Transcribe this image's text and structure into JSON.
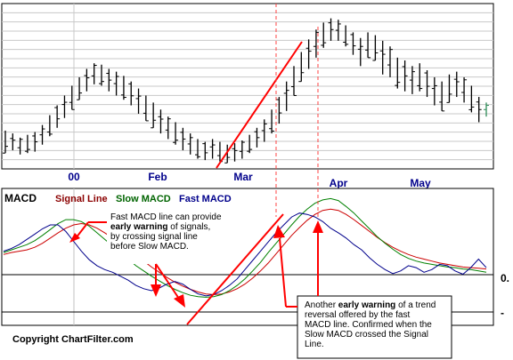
{
  "chart_data": [
    {
      "type": "bar",
      "subtype": "ohlc-price-bars",
      "x_tick_labels": [
        "00",
        "Feb",
        "Mar",
        "Apr",
        "May"
      ],
      "grid": true,
      "series": [
        {
          "color": "#000000",
          "values": [
            {
              "hi": 0.2,
              "lo": 0.04
            },
            {
              "hi": 0.18,
              "lo": 0.06
            },
            {
              "hi": 0.15,
              "lo": 0.03
            },
            {
              "hi": 0.17,
              "lo": 0.04
            },
            {
              "hi": 0.19,
              "lo": 0.05
            },
            {
              "hi": 0.24,
              "lo": 0.1
            },
            {
              "hi": 0.31,
              "lo": 0.16
            },
            {
              "hi": 0.38,
              "lo": 0.22
            },
            {
              "hi": 0.45,
              "lo": 0.29
            },
            {
              "hi": 0.52,
              "lo": 0.35
            },
            {
              "hi": 0.58,
              "lo": 0.42
            },
            {
              "hi": 0.64,
              "lo": 0.48
            },
            {
              "hi": 0.68,
              "lo": 0.53
            },
            {
              "hi": 0.67,
              "lo": 0.52
            },
            {
              "hi": 0.64,
              "lo": 0.48
            },
            {
              "hi": 0.62,
              "lo": 0.45
            },
            {
              "hi": 0.59,
              "lo": 0.42
            },
            {
              "hi": 0.55,
              "lo": 0.38
            },
            {
              "hi": 0.5,
              "lo": 0.32
            },
            {
              "hi": 0.45,
              "lo": 0.27
            },
            {
              "hi": 0.4,
              "lo": 0.22
            },
            {
              "hi": 0.35,
              "lo": 0.18
            },
            {
              "hi": 0.3,
              "lo": 0.14
            },
            {
              "hi": 0.26,
              "lo": 0.1
            },
            {
              "hi": 0.22,
              "lo": 0.06
            },
            {
              "hi": 0.18,
              "lo": 0.03
            },
            {
              "hi": 0.14,
              "lo": 0.0
            },
            {
              "hi": 0.12,
              "lo": -0.01
            },
            {
              "hi": 0.14,
              "lo": 0.0
            },
            {
              "hi": 0.12,
              "lo": -0.02
            },
            {
              "hi": 0.1,
              "lo": -0.03
            },
            {
              "hi": 0.11,
              "lo": -0.02
            },
            {
              "hi": 0.13,
              "lo": 0.0
            },
            {
              "hi": 0.17,
              "lo": 0.04
            },
            {
              "hi": 0.22,
              "lo": 0.08
            },
            {
              "hi": 0.28,
              "lo": 0.12
            },
            {
              "hi": 0.35,
              "lo": 0.18
            },
            {
              "hi": 0.44,
              "lo": 0.25
            },
            {
              "hi": 0.55,
              "lo": 0.34
            },
            {
              "hi": 0.66,
              "lo": 0.45
            },
            {
              "hi": 0.76,
              "lo": 0.55
            },
            {
              "hi": 0.85,
              "lo": 0.64
            },
            {
              "hi": 0.92,
              "lo": 0.72
            },
            {
              "hi": 0.97,
              "lo": 0.79
            },
            {
              "hi": 1.0,
              "lo": 0.84
            },
            {
              "hi": 0.99,
              "lo": 0.84
            },
            {
              "hi": 0.95,
              "lo": 0.8
            },
            {
              "hi": 0.9,
              "lo": 0.74
            },
            {
              "hi": 0.86,
              "lo": 0.66
            },
            {
              "hi": 0.9,
              "lo": 0.72
            },
            {
              "hi": 0.88,
              "lo": 0.7
            },
            {
              "hi": 0.84,
              "lo": 0.6
            },
            {
              "hi": 0.8,
              "lo": 0.58
            },
            {
              "hi": 0.72,
              "lo": 0.5
            },
            {
              "hi": 0.7,
              "lo": 0.48
            },
            {
              "hi": 0.66,
              "lo": 0.46
            },
            {
              "hi": 0.68,
              "lo": 0.48
            },
            {
              "hi": 0.63,
              "lo": 0.44
            },
            {
              "hi": 0.58,
              "lo": 0.38
            },
            {
              "hi": 0.55,
              "lo": 0.34
            },
            {
              "hi": 0.6,
              "lo": 0.4
            },
            {
              "hi": 0.62,
              "lo": 0.44
            },
            {
              "hi": 0.58,
              "lo": 0.4
            },
            {
              "hi": 0.52,
              "lo": 0.33
            },
            {
              "hi": 0.44,
              "lo": 0.26
            },
            {
              "hi": 0.4,
              "lo": 0.3
            }
          ]
        }
      ],
      "ylim": [
        -0.06,
        1.08
      ]
    },
    {
      "type": "line",
      "title": "MACD",
      "legend": [
        "Signal Line",
        "Slow MACD",
        "Fast MACD"
      ],
      "legend_position": "top-left",
      "y_tick_labels": [
        "0.",
        "-"
      ],
      "grid": true,
      "ylim": [
        -1.0,
        1.0
      ],
      "series": [
        {
          "name": "Signal Line",
          "color": "#cc0000",
          "values": [
            0.05,
            0.08,
            0.1,
            0.12,
            0.16,
            0.22,
            0.3,
            0.38,
            0.45,
            0.5,
            0.52,
            0.5,
            0.45,
            0.38,
            0.3,
            0.22,
            0.13,
            0.04,
            -0.05,
            -0.14,
            -0.22,
            -0.3,
            -0.37,
            -0.43,
            -0.48,
            -0.52,
            -0.55,
            -0.56,
            -0.55,
            -0.52,
            -0.47,
            -0.4,
            -0.31,
            -0.2,
            -0.08,
            0.06,
            0.2,
            0.34,
            0.46,
            0.57,
            0.66,
            0.72,
            0.74,
            0.72,
            0.66,
            0.58,
            0.49,
            0.4,
            0.31,
            0.23,
            0.16,
            0.1,
            0.05,
            0.01,
            -0.02,
            -0.05,
            -0.08,
            -0.1,
            -0.12,
            -0.14,
            -0.15,
            -0.16,
            -0.17
          ]
        },
        {
          "name": "Slow MACD",
          "color": "#008000",
          "values": [
            0.08,
            0.12,
            0.16,
            0.2,
            0.26,
            0.34,
            0.43,
            0.52,
            0.58,
            0.58,
            0.55,
            0.48,
            0.38,
            0.28,
            0.18,
            0.08,
            -0.02,
            -0.12,
            -0.2,
            -0.28,
            -0.35,
            -0.42,
            -0.48,
            -0.53,
            -0.57,
            -0.59,
            -0.6,
            -0.59,
            -0.56,
            -0.5,
            -0.42,
            -0.32,
            -0.2,
            -0.07,
            0.08,
            0.22,
            0.36,
            0.5,
            0.63,
            0.74,
            0.83,
            0.88,
            0.9,
            0.87,
            0.78,
            0.68,
            0.56,
            0.44,
            0.32,
            0.22,
            0.13,
            0.05,
            -0.01,
            -0.05,
            -0.08,
            -0.1,
            -0.12,
            -0.14,
            -0.15,
            -0.17,
            -0.18,
            -0.2,
            -0.22
          ]
        },
        {
          "name": "Fast MACD",
          "color": "#00008b",
          "values": [
            0.1,
            0.14,
            0.2,
            0.28,
            0.36,
            0.44,
            0.5,
            0.5,
            0.4,
            0.25,
            0.1,
            -0.03,
            -0.12,
            -0.18,
            -0.22,
            -0.28,
            -0.34,
            -0.42,
            -0.47,
            -0.5,
            -0.46,
            -0.4,
            -0.36,
            -0.4,
            -0.48,
            -0.55,
            -0.58,
            -0.56,
            -0.5,
            -0.42,
            -0.32,
            -0.18,
            -0.04,
            0.1,
            0.24,
            0.38,
            0.5,
            0.62,
            0.68,
            0.66,
            0.62,
            0.55,
            0.45,
            0.38,
            0.3,
            0.2,
            0.12,
            0.0,
            -0.1,
            -0.18,
            -0.24,
            -0.2,
            -0.12,
            -0.15,
            -0.22,
            -0.18,
            -0.1,
            -0.12,
            -0.2,
            -0.25,
            -0.15,
            -0.02,
            -0.15
          ]
        }
      ]
    }
  ],
  "annotations": {
    "early_warning_note": {
      "before": "Fast MACD line can provide",
      "bold": "early warning",
      "after": "of signals, by crossing signal line before Slow MACD."
    },
    "trend_reversal_note": {
      "before": "Another",
      "bold": "early warning",
      "after": "of a trend reversal offered by the fast MACD line.  Confirmed when the Slow MACD crossed the Signal Line."
    },
    "copyright": "Copyright ChartFilter.com"
  }
}
